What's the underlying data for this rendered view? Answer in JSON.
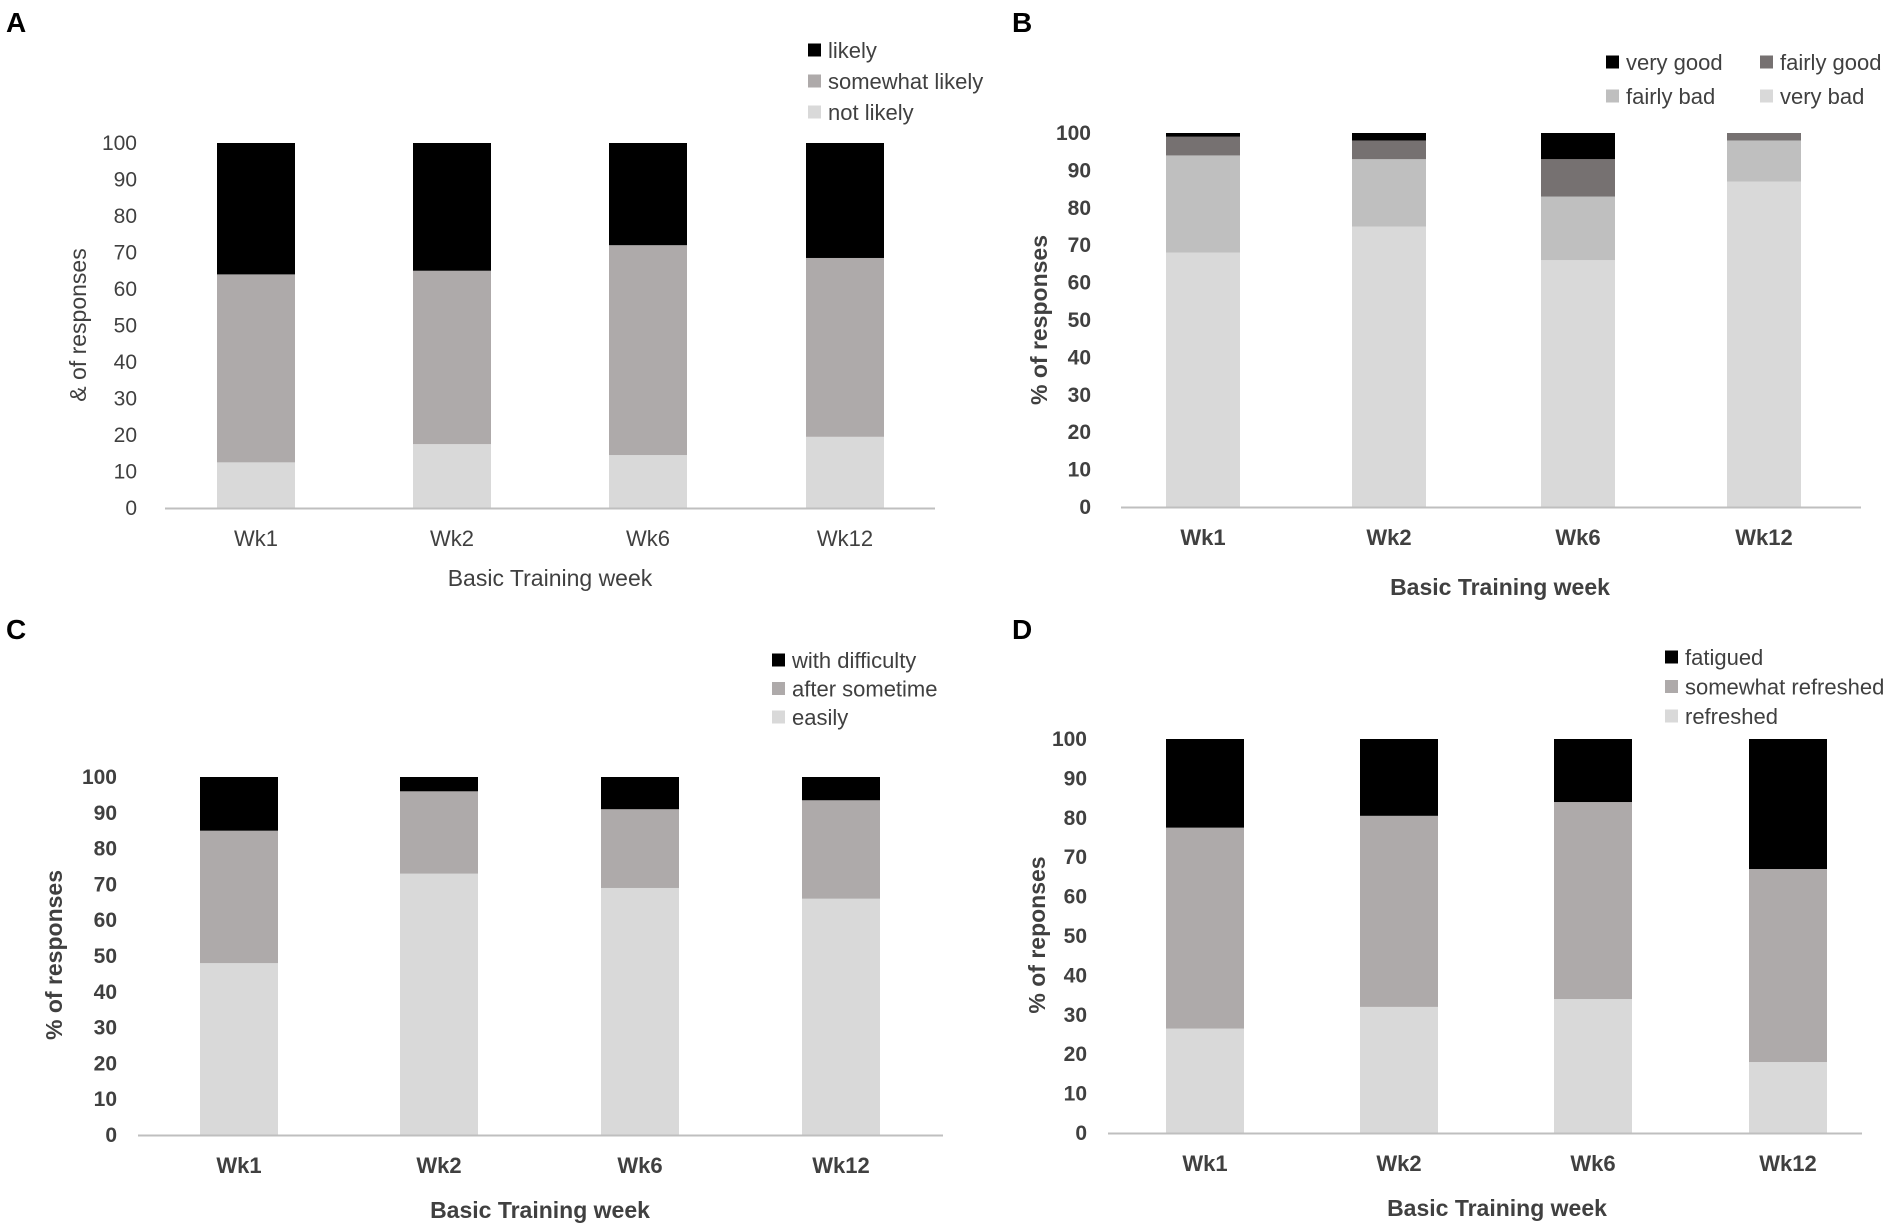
{
  "colors": {
    "black": "#000000",
    "dark_gray": "#767171",
    "mid_gray": "#aeaaaa",
    "light_gray": "#bfbfbf",
    "lightest_gray": "#d9d9d9",
    "axis": "#bfbfbf",
    "text": "#404040"
  },
  "chart_data": [
    {
      "panel": "A",
      "type": "bar",
      "stacked": true,
      "categories": [
        "Wk1",
        "Wk2",
        "Wk6",
        "Wk12"
      ],
      "xlabel": "Basic Training week",
      "ylabel": "& of responses",
      "ylim": [
        0,
        100
      ],
      "yticks": [
        0,
        10,
        20,
        30,
        40,
        50,
        60,
        70,
        80,
        90,
        100
      ],
      "legend_position": "top-right",
      "series": [
        {
          "name": "not likely",
          "values": [
            12.5,
            17.5,
            14.5,
            19.5
          ],
          "color": "#d9d9d9"
        },
        {
          "name": "somewhat likely",
          "values": [
            51.5,
            47.5,
            57.5,
            49
          ],
          "color": "#aeaaaa"
        },
        {
          "name": "likely",
          "values": [
            36,
            35,
            28,
            31.5
          ],
          "color": "#000000"
        }
      ],
      "legend_order": [
        "likely",
        "somewhat likely",
        "not likely"
      ]
    },
    {
      "panel": "B",
      "type": "bar",
      "stacked": true,
      "categories": [
        "Wk1",
        "Wk2",
        "Wk6",
        "Wk12"
      ],
      "xlabel": "Basic Training week",
      "ylabel": "% of responses",
      "ylim": [
        0,
        100
      ],
      "yticks": [
        0,
        10,
        20,
        30,
        40,
        50,
        60,
        70,
        80,
        90,
        100
      ],
      "legend_position": "top-right",
      "series": [
        {
          "name": "very bad",
          "values": [
            68,
            75,
            66,
            87
          ],
          "color": "#d9d9d9"
        },
        {
          "name": "fairly bad",
          "values": [
            26,
            18,
            17,
            11
          ],
          "color": "#bfbfbf"
        },
        {
          "name": "fairly good",
          "values": [
            5,
            5,
            10,
            2
          ],
          "color": "#767171"
        },
        {
          "name": "very good",
          "values": [
            1,
            2,
            7,
            0
          ],
          "color": "#000000"
        }
      ],
      "legend_order": [
        "very good",
        "fairly good",
        "fairly bad",
        "very bad"
      ]
    },
    {
      "panel": "C",
      "type": "bar",
      "stacked": true,
      "categories": [
        "Wk1",
        "Wk2",
        "Wk6",
        "Wk12"
      ],
      "xlabel": "Basic Training week",
      "ylabel": "% of responses",
      "ylim": [
        0,
        100
      ],
      "yticks": [
        0,
        10,
        20,
        30,
        40,
        50,
        60,
        70,
        80,
        90,
        100
      ],
      "legend_position": "top-right",
      "series": [
        {
          "name": "easily",
          "values": [
            48,
            73,
            69,
            66
          ],
          "color": "#d9d9d9"
        },
        {
          "name": "after sometime",
          "values": [
            37,
            23,
            22,
            27.5
          ],
          "color": "#aeaaaa"
        },
        {
          "name": "with difficulty",
          "values": [
            15,
            4,
            9,
            6.5
          ],
          "color": "#000000"
        }
      ],
      "legend_order": [
        "with difficulty",
        "after sometime",
        "easily"
      ]
    },
    {
      "panel": "D",
      "type": "bar",
      "stacked": true,
      "categories": [
        "Wk1",
        "Wk2",
        "Wk6",
        "Wk12"
      ],
      "xlabel": "Basic Training week",
      "ylabel": "% of reponses",
      "ylim": [
        0,
        100
      ],
      "yticks": [
        0,
        10,
        20,
        30,
        40,
        50,
        60,
        70,
        80,
        90,
        100
      ],
      "legend_position": "top-right",
      "series": [
        {
          "name": "refreshed",
          "values": [
            26.5,
            32,
            34,
            18
          ],
          "color": "#d9d9d9"
        },
        {
          "name": "somewhat refreshed",
          "values": [
            51,
            48.5,
            50,
            49
          ],
          "color": "#aeaaaa"
        },
        {
          "name": "fatigued",
          "values": [
            22.5,
            19.5,
            16,
            33
          ],
          "color": "#000000"
        }
      ],
      "legend_order": [
        "fatigued",
        "somewhat refreshed",
        "refreshed"
      ]
    }
  ]
}
